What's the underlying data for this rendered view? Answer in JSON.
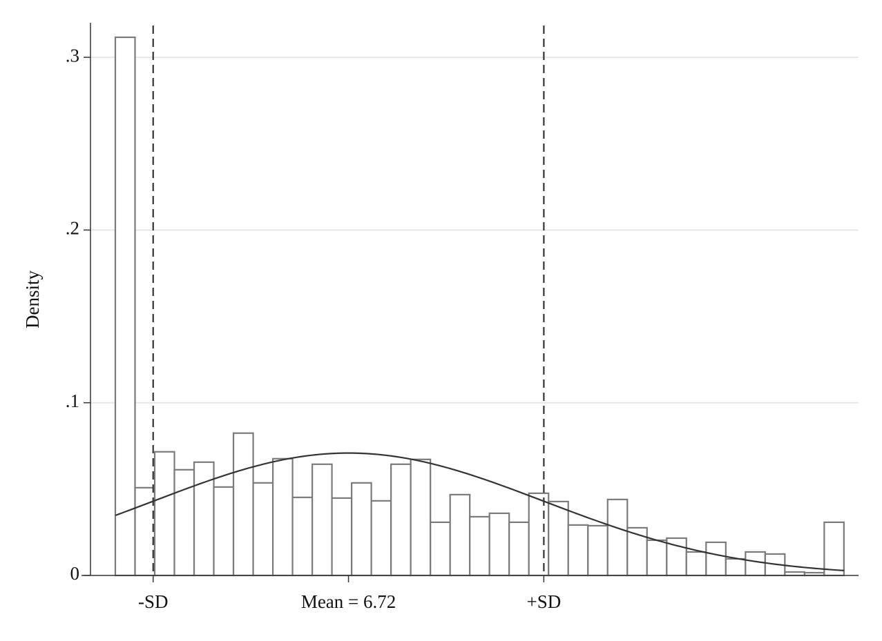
{
  "chart_data": {
    "type": "histogram",
    "y_label": "Density",
    "bins": [
      0,
      0.568,
      1.135,
      1.703,
      2.27,
      2.838,
      3.405,
      3.973,
      4.541,
      5.108,
      5.676,
      6.243,
      6.811,
      7.378,
      7.946,
      8.514,
      9.081,
      9.649,
      10.216,
      10.784,
      11.351,
      11.919,
      12.486,
      13.054,
      13.622,
      14.189,
      14.757,
      15.324,
      15.892,
      16.459,
      17.027,
      17.595,
      18.162,
      18.73,
      19.297,
      19.865,
      20.432,
      21
    ],
    "values": [
      0.3116,
      0.0508,
      0.0716,
      0.0612,
      0.0656,
      0.0512,
      0.0824,
      0.0536,
      0.0676,
      0.0452,
      0.0644,
      0.0448,
      0.0536,
      0.0432,
      0.0644,
      0.0672,
      0.0308,
      0.0468,
      0.034,
      0.036,
      0.0308,
      0.0476,
      0.0428,
      0.0292,
      0.0288,
      0.044,
      0.0276,
      0.0204,
      0.0216,
      0.0136,
      0.0192,
      0.0096,
      0.0136,
      0.0124,
      0.002,
      0.0016,
      0.0308
    ],
    "color": "#7a7a7a",
    "normal": {
      "mean": 6.72,
      "sd": 5.63,
      "color": "#333333"
    },
    "reference_lines": {
      "values": [
        1.09,
        12.35
      ],
      "style": "dashed",
      "color": "#333333"
    },
    "xlim": [
      -0.975,
      21.42
    ],
    "xticks": [
      {
        "value": 1.09,
        "label": "-SD"
      },
      {
        "value": 6.72,
        "label": "Mean = 6.72"
      },
      {
        "value": 12.35,
        "label": "+SD"
      }
    ],
    "ylim": [
      0,
      0.32
    ],
    "yticks": [
      0,
      {
        "value": 0.1,
        "label": ".1"
      },
      {
        "value": 0.2,
        "label": ".2"
      },
      {
        "value": 0.3,
        "label": ".3"
      }
    ],
    "grid": true
  }
}
